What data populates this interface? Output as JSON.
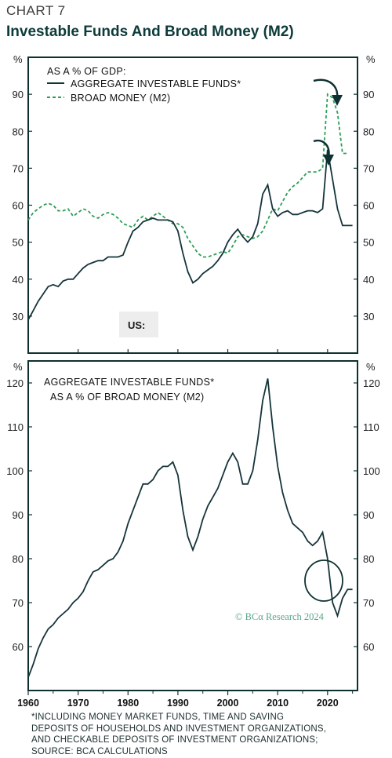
{
  "header": {
    "label": "CHART 7",
    "title": "Investable Funds And Broad Money (M2)"
  },
  "chart_data": [
    {
      "type": "line",
      "panel": "top",
      "unit_label": "%",
      "subtitle": "AS A % OF GDP:",
      "region_label": "US:",
      "ylim": [
        20,
        100
      ],
      "yticks": [
        30,
        40,
        50,
        60,
        70,
        80,
        90
      ],
      "series": [
        {
          "name": "AGGREGATE INVESTABLE FUNDS*",
          "style": "solid",
          "color": "#15343a",
          "points": [
            [
              1960,
              29
            ],
            [
              1961,
              31.5
            ],
            [
              1962,
              34
            ],
            [
              1963,
              36
            ],
            [
              1964,
              38
            ],
            [
              1965,
              38.5
            ],
            [
              1966,
              38
            ],
            [
              1967,
              39.5
            ],
            [
              1968,
              40
            ],
            [
              1969,
              40
            ],
            [
              1970,
              41.5
            ],
            [
              1971,
              43
            ],
            [
              1972,
              44
            ],
            [
              1973,
              44.5
            ],
            [
              1974,
              45
            ],
            [
              1975,
              45
            ],
            [
              1976,
              46
            ],
            [
              1977,
              46
            ],
            [
              1978,
              46
            ],
            [
              1979,
              46.5
            ],
            [
              1980,
              50
            ],
            [
              1981,
              53
            ],
            [
              1982,
              54
            ],
            [
              1983,
              55.5
            ],
            [
              1984,
              56
            ],
            [
              1985,
              56.5
            ],
            [
              1986,
              56
            ],
            [
              1987,
              56
            ],
            [
              1988,
              56
            ],
            [
              1989,
              55.5
            ],
            [
              1990,
              53
            ],
            [
              1991,
              47
            ],
            [
              1992,
              42
            ],
            [
              1993,
              39
            ],
            [
              1994,
              40
            ],
            [
              1995,
              41.5
            ],
            [
              1996,
              42.5
            ],
            [
              1997,
              43.5
            ],
            [
              1998,
              45
            ],
            [
              1999,
              47
            ],
            [
              2000,
              50
            ],
            [
              2001,
              52
            ],
            [
              2002,
              53.5
            ],
            [
              2003,
              51.5
            ],
            [
              2004,
              50
            ],
            [
              2005,
              51.5
            ],
            [
              2006,
              55
            ],
            [
              2007,
              63
            ],
            [
              2008,
              65.5
            ],
            [
              2009,
              59
            ],
            [
              2010,
              57
            ],
            [
              2011,
              58
            ],
            [
              2012,
              58.5
            ],
            [
              2013,
              57.5
            ],
            [
              2014,
              57.5
            ],
            [
              2015,
              58
            ],
            [
              2016,
              58.5
            ],
            [
              2017,
              58.5
            ],
            [
              2018,
              58
            ],
            [
              2019,
              59
            ],
            [
              2020,
              75
            ],
            [
              2021,
              67
            ],
            [
              2022,
              59
            ],
            [
              2023,
              54.5
            ],
            [
              2024,
              54.5
            ],
            [
              2025,
              54.5
            ]
          ]
        },
        {
          "name": "BROAD MONEY (M2)",
          "style": "dashed",
          "color": "#2e9e57",
          "points": [
            [
              1960,
              56
            ],
            [
              1961,
              58
            ],
            [
              1962,
              59
            ],
            [
              1963,
              60
            ],
            [
              1964,
              60.5
            ],
            [
              1965,
              60
            ],
            [
              1966,
              58.5
            ],
            [
              1967,
              58.5
            ],
            [
              1968,
              59
            ],
            [
              1969,
              57
            ],
            [
              1970,
              58
            ],
            [
              1971,
              59
            ],
            [
              1972,
              58.5
            ],
            [
              1973,
              57
            ],
            [
              1974,
              56.5
            ],
            [
              1975,
              57.5
            ],
            [
              1976,
              58
            ],
            [
              1977,
              57.5
            ],
            [
              1978,
              56.5
            ],
            [
              1979,
              55
            ],
            [
              1980,
              54.5
            ],
            [
              1981,
              54
            ],
            [
              1982,
              56
            ],
            [
              1983,
              57
            ],
            [
              1984,
              56
            ],
            [
              1985,
              57
            ],
            [
              1986,
              58
            ],
            [
              1987,
              57
            ],
            [
              1988,
              56
            ],
            [
              1989,
              55
            ],
            [
              1990,
              55
            ],
            [
              1991,
              54
            ],
            [
              1992,
              51
            ],
            [
              1993,
              49
            ],
            [
              1994,
              47
            ],
            [
              1995,
              46
            ],
            [
              1996,
              46
            ],
            [
              1997,
              46.5
            ],
            [
              1998,
              47
            ],
            [
              1999,
              47.5
            ],
            [
              2000,
              47
            ],
            [
              2001,
              49
            ],
            [
              2002,
              51.5
            ],
            [
              2003,
              52
            ],
            [
              2004,
              51.5
            ],
            [
              2005,
              51
            ],
            [
              2006,
              51.5
            ],
            [
              2007,
              53
            ],
            [
              2008,
              56
            ],
            [
              2009,
              59
            ],
            [
              2010,
              58.5
            ],
            [
              2011,
              61
            ],
            [
              2012,
              63.5
            ],
            [
              2013,
              65
            ],
            [
              2014,
              66
            ],
            [
              2015,
              67.5
            ],
            [
              2016,
              69
            ],
            [
              2017,
              69
            ],
            [
              2018,
              69
            ],
            [
              2019,
              70
            ],
            [
              2020,
              90
            ],
            [
              2021,
              89
            ],
            [
              2022,
              85
            ],
            [
              2023,
              74
            ],
            [
              2024,
              74
            ]
          ]
        }
      ]
    },
    {
      "type": "line",
      "panel": "bottom",
      "unit_label": "%",
      "subtitle_lines": [
        "AGGREGATE INVESTABLE FUNDS*",
        "AS A % OF BROAD MONEY (M2)"
      ],
      "ylim": [
        50,
        125
      ],
      "yticks": [
        60,
        70,
        80,
        90,
        100,
        110,
        120
      ],
      "series": [
        {
          "name": "AGGREGATE INVESTABLE FUNDS* AS A % OF BROAD MONEY (M2)",
          "style": "solid",
          "color": "#15343a",
          "points": [
            [
              1960,
              53
            ],
            [
              1961,
              56
            ],
            [
              1962,
              59.5
            ],
            [
              1963,
              62
            ],
            [
              1964,
              64
            ],
            [
              1965,
              65
            ],
            [
              1966,
              66.5
            ],
            [
              1967,
              67.5
            ],
            [
              1968,
              68.5
            ],
            [
              1969,
              70
            ],
            [
              1970,
              71
            ],
            [
              1971,
              72.5
            ],
            [
              1972,
              75
            ],
            [
              1973,
              77
            ],
            [
              1974,
              77.5
            ],
            [
              1975,
              78.5
            ],
            [
              1976,
              79.5
            ],
            [
              1977,
              80
            ],
            [
              1978,
              81.5
            ],
            [
              1979,
              84
            ],
            [
              1980,
              88
            ],
            [
              1981,
              91
            ],
            [
              1982,
              94
            ],
            [
              1983,
              97
            ],
            [
              1984,
              97
            ],
            [
              1985,
              98
            ],
            [
              1986,
              100
            ],
            [
              1987,
              101
            ],
            [
              1988,
              101
            ],
            [
              1989,
              102
            ],
            [
              1990,
              99
            ],
            [
              1991,
              91
            ],
            [
              1992,
              85
            ],
            [
              1993,
              82
            ],
            [
              1994,
              85
            ],
            [
              1995,
              89
            ],
            [
              1996,
              92
            ],
            [
              1997,
              94
            ],
            [
              1998,
              96
            ],
            [
              1999,
              99
            ],
            [
              2000,
              102
            ],
            [
              2001,
              104
            ],
            [
              2002,
              102
            ],
            [
              2003,
              97
            ],
            [
              2004,
              97
            ],
            [
              2005,
              100
            ],
            [
              2006,
              107
            ],
            [
              2007,
              116
            ],
            [
              2008,
              121
            ],
            [
              2009,
              110
            ],
            [
              2010,
              101
            ],
            [
              2011,
              95
            ],
            [
              2012,
              91
            ],
            [
              2013,
              88
            ],
            [
              2014,
              87
            ],
            [
              2015,
              86
            ],
            [
              2016,
              84
            ],
            [
              2017,
              83
            ],
            [
              2018,
              84
            ],
            [
              2019,
              86
            ],
            [
              2020,
              80
            ],
            [
              2021,
              70
            ],
            [
              2022,
              67
            ],
            [
              2023,
              71
            ],
            [
              2024,
              73
            ],
            [
              2025,
              73
            ]
          ]
        }
      ]
    }
  ],
  "x_axis": {
    "ticks": [
      1960,
      1970,
      1980,
      1990,
      2000,
      2010,
      2020
    ],
    "xlim": [
      1960,
      2026
    ]
  },
  "watermark": "© BCα Research 2024",
  "footnote": [
    "*INCLUDING MONEY MARKET FUNDS, TIME AND SAVING",
    "DEPOSITS OF HOUSEHOLDS AND INVESTMENT ORGANIZATIONS,",
    "AND CHECKABLE DEPOSITS OF INVESTMENT ORGANIZATIONS;",
    "SOURCE: BCA CALCULATIONS"
  ],
  "colors": {
    "frame": "#0f3030",
    "solid_line": "#15343a",
    "dashed_line": "#2e9e57",
    "watermark": "#5aa88a",
    "badge_bg": "#ededed"
  }
}
